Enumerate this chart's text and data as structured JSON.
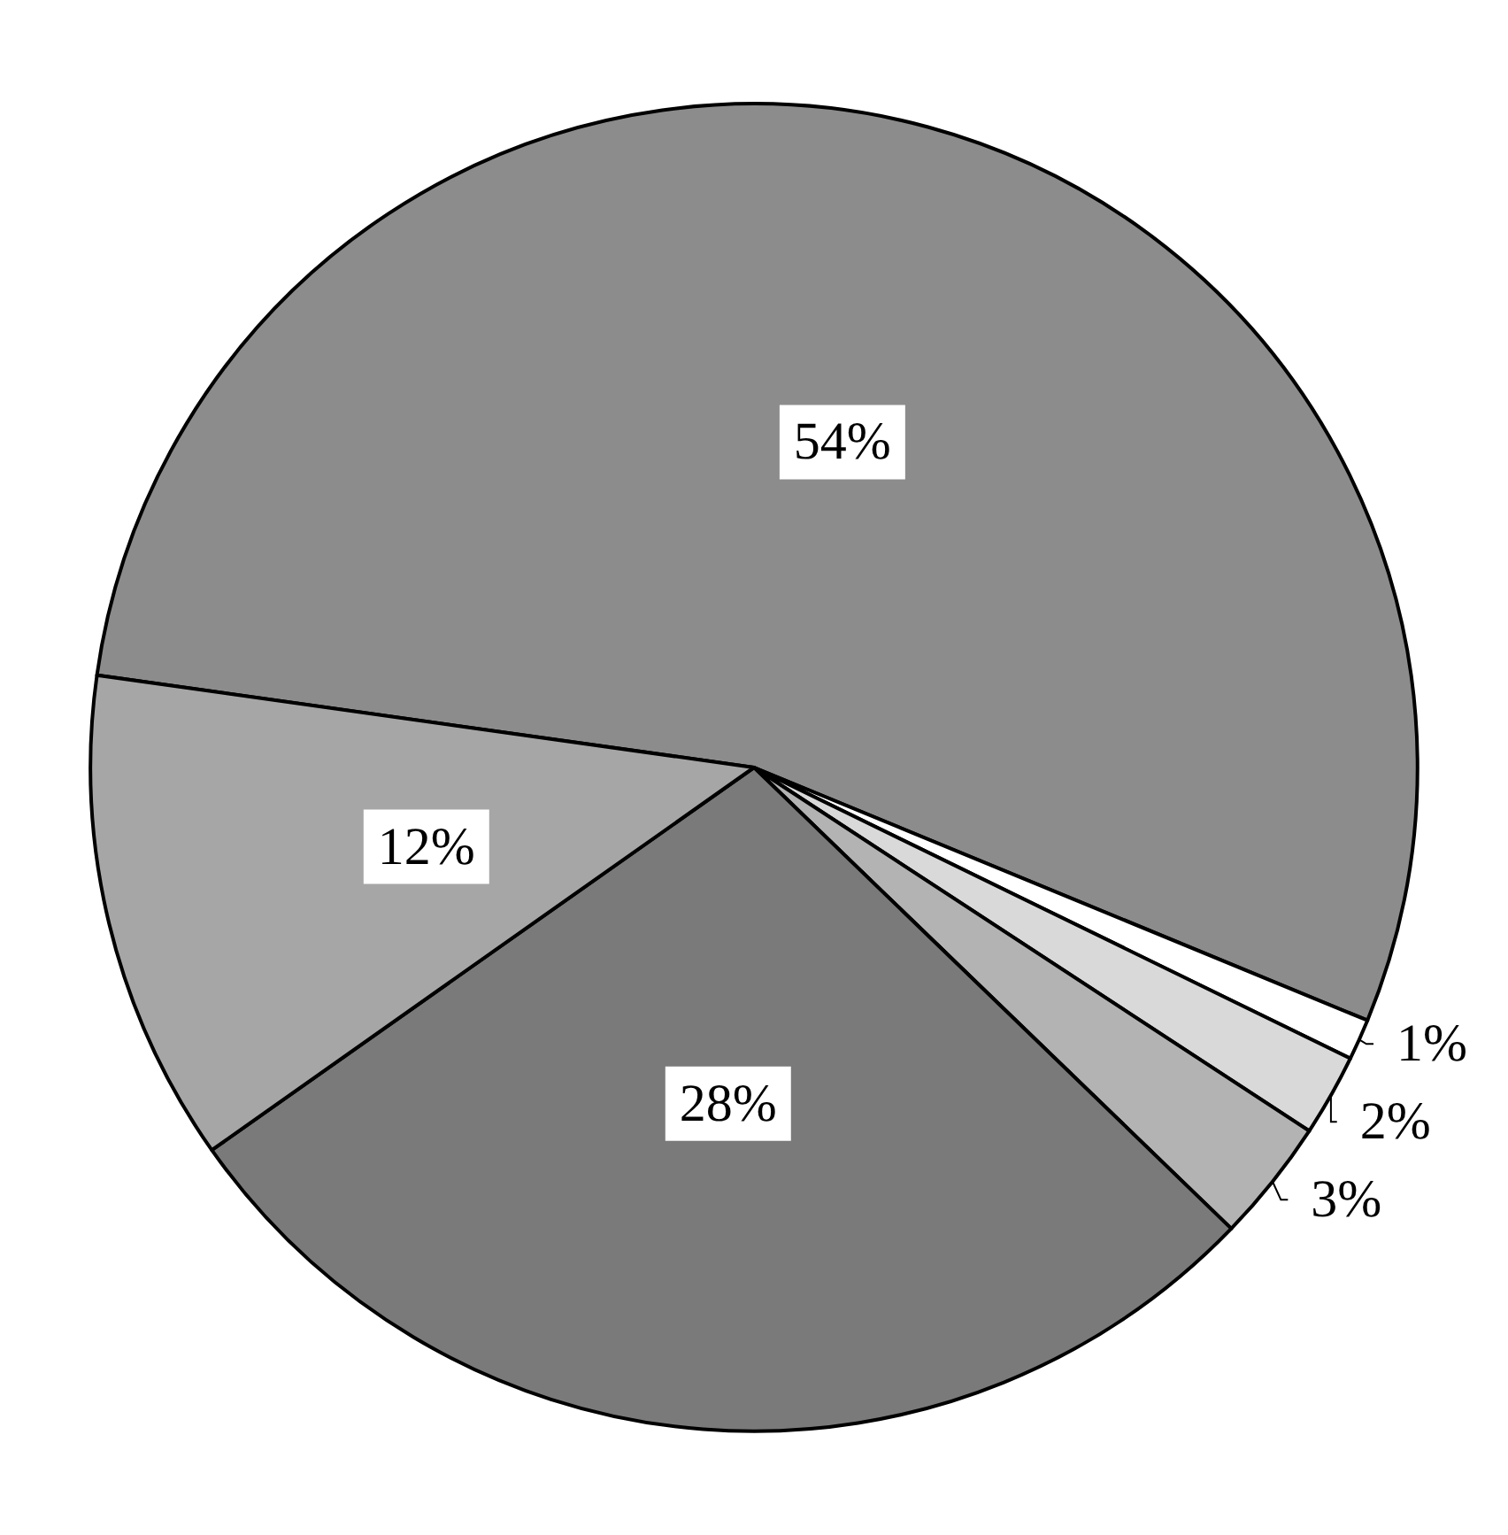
{
  "chart_data": {
    "type": "pie",
    "categories": [
      null,
      null,
      null,
      null,
      null,
      null
    ],
    "values": [
      54,
      1,
      2,
      3,
      28,
      12
    ],
    "value_labels": [
      "54%",
      "1%",
      "2%",
      "3%",
      "28%",
      "12%"
    ],
    "colors": [
      "#8c8c8c",
      "#ffffff",
      "#d9d9d9",
      "#b3b3b3",
      "#7a7a7a",
      "#a6a6a6"
    ]
  }
}
